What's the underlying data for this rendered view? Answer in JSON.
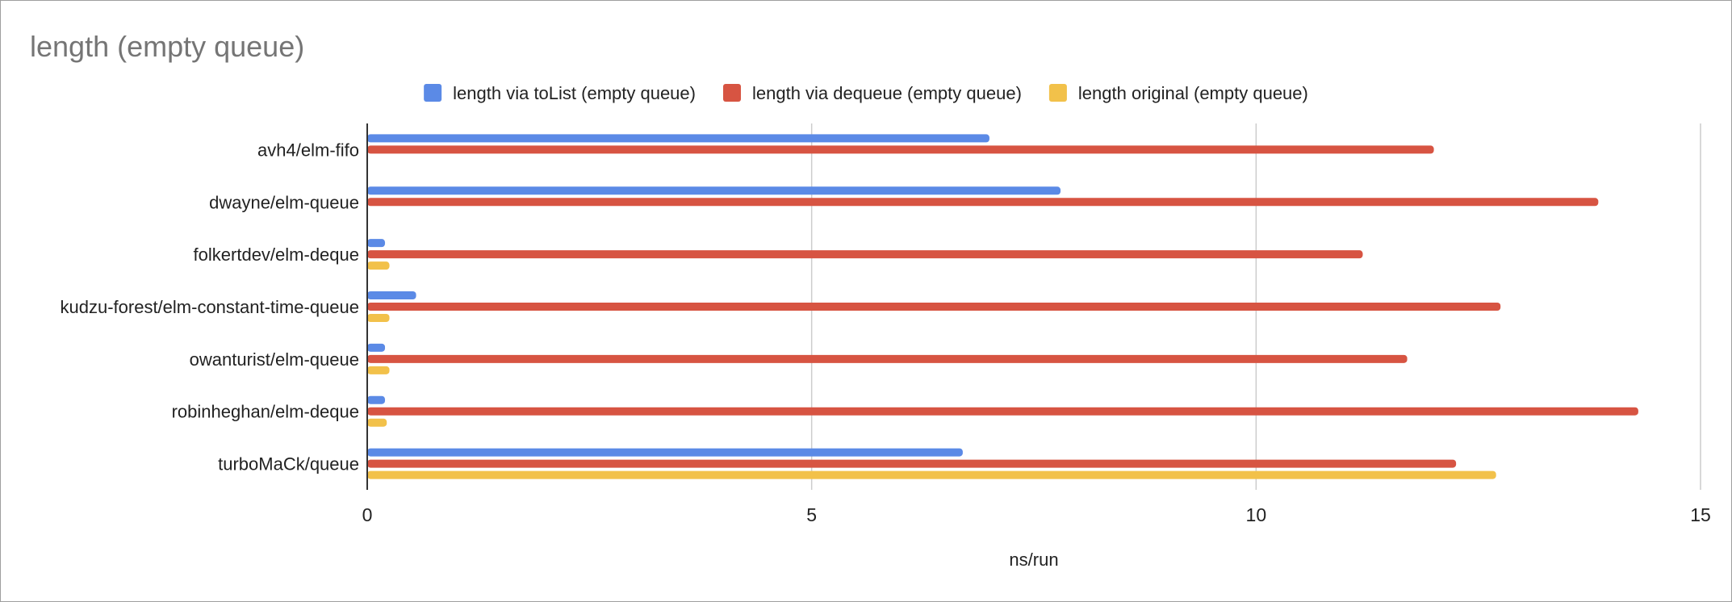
{
  "chart_data": {
    "type": "bar",
    "orientation": "horizontal",
    "title": "length (empty queue)",
    "xlabel": "ns/run",
    "ylabel": "",
    "xlim": [
      0,
      15
    ],
    "xticks": [
      "0",
      "5",
      "10",
      "15"
    ],
    "grid": true,
    "legend_position": "top",
    "categories": [
      "avh4/elm-fifo",
      "dwayne/elm-queue",
      "folkertdev/elm-deque",
      "kudzu-forest/elm-constant-time-queue",
      "owanturist/elm-queue",
      "robinheghan/elm-deque",
      "turboMaCk/queue"
    ],
    "series": [
      {
        "name": "length via toList (empty queue)",
        "color": "#5b8ae6",
        "values": [
          7.0,
          7.8,
          0.2,
          0.55,
          0.2,
          0.2,
          6.7
        ]
      },
      {
        "name": "length via dequeue (empty queue)",
        "color": "#d75442",
        "values": [
          12.0,
          13.85,
          11.2,
          12.75,
          11.7,
          14.3,
          12.25
        ]
      },
      {
        "name": "length original (empty queue)",
        "color": "#f2c14a",
        "values": [
          null,
          null,
          0.25,
          0.25,
          0.25,
          0.22,
          12.7
        ]
      }
    ]
  }
}
